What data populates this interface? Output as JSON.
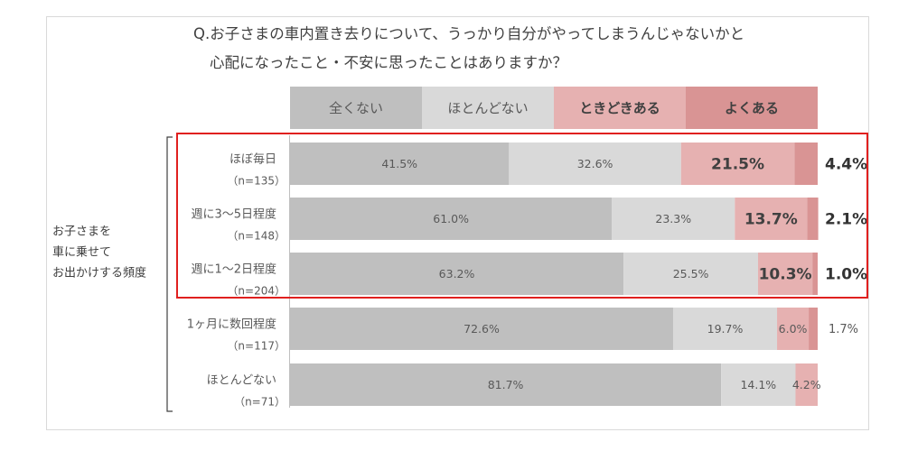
{
  "title": {
    "line1": "Q.お子さまの車内置き去りについて、うっかり自分がやってしまうんじゃないかと",
    "line2": "心配になったこと・不安に思ったことはありますか？"
  },
  "group_label": [
    "お子さまを",
    "車に乗せて",
    "お出かけする頻度"
  ],
  "colors": {
    "series": [
      "#bfbfbf",
      "#d9d9d9",
      "#e6b1b1",
      "#d99494"
    ],
    "header": [
      "#bfbfbf",
      "#d9d9d9",
      "#e6b1b1",
      "#d99494"
    ],
    "highlight": "#e0201f"
  },
  "chart_data": {
    "type": "bar",
    "orientation": "horizontal",
    "stacked": "100%",
    "categories": [
      {
        "label": "ほぼ毎日",
        "n": "（n=135）"
      },
      {
        "label": "週に3～5日程度",
        "n": "（n=148）"
      },
      {
        "label": "週に1～2日程度",
        "n": "（n=204）"
      },
      {
        "label": "1ヶ月に数回程度",
        "n": "（n=117）"
      },
      {
        "label": "ほとんどない",
        "n": "（n=71）"
      }
    ],
    "series": [
      {
        "name": "全くない",
        "values": [
          41.5,
          61.0,
          63.2,
          72.6,
          81.7
        ],
        "labels": [
          "41.5%",
          "61.0%",
          "63.2%",
          "72.6%",
          "81.7%"
        ]
      },
      {
        "name": "ほとんどない",
        "values": [
          32.6,
          23.3,
          25.5,
          19.7,
          14.1
        ],
        "labels": [
          "32.6%",
          "23.3%",
          "25.5%",
          "19.7%",
          "14.1%"
        ]
      },
      {
        "name": "ときどきある",
        "values": [
          21.5,
          13.7,
          10.3,
          6.0,
          4.2
        ],
        "labels": [
          "21.5%",
          "13.7%",
          "10.3%",
          "6.0%",
          "4.2%"
        ]
      },
      {
        "name": "よくある",
        "values": [
          4.4,
          2.1,
          1.0,
          1.7,
          0
        ],
        "labels": [
          "4.4%",
          "2.1%",
          "1.0%",
          "1.7%",
          ""
        ]
      }
    ],
    "highlighted_rows": [
      0,
      1,
      2
    ],
    "xlim": [
      0,
      100
    ]
  }
}
